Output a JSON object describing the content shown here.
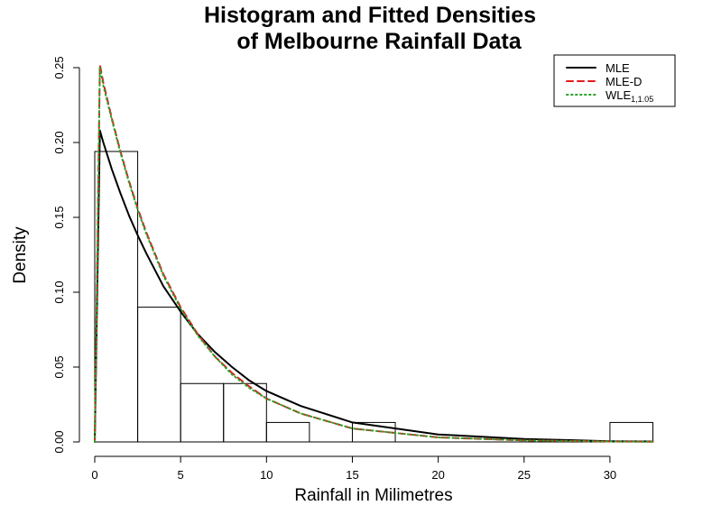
{
  "chart_data": {
    "type": "histogram",
    "title": [
      "Histogram and Fitted Densities",
      "of Melbourne Rainfall Data"
    ],
    "xlabel": "Rainfall in Milimetres",
    "ylabel": "Density",
    "xlim": [
      0,
      32.5
    ],
    "ylim": [
      0,
      0.25
    ],
    "x_ticks": [
      0,
      5,
      10,
      15,
      20,
      25,
      30
    ],
    "y_ticks": [
      0.0,
      0.05,
      0.1,
      0.15,
      0.2,
      0.25
    ],
    "y_tick_labels": [
      "0.00",
      "0.05",
      "0.10",
      "0.15",
      "0.20",
      "0.25"
    ],
    "grid": false,
    "legend_position": "top-right",
    "histogram": {
      "bin_edges": [
        0,
        2.5,
        5,
        7.5,
        10,
        12.5,
        15,
        17.5,
        20,
        22.5,
        25,
        27.5,
        30,
        32.5
      ],
      "densities": [
        0.194,
        0.09,
        0.039,
        0.039,
        0.013,
        0.0,
        0.013,
        0.0,
        0.0,
        0.0,
        0.0,
        0.0,
        0.013
      ]
    },
    "series": [
      {
        "name": "MLE",
        "color": "#000000",
        "line_style": "solid",
        "x": [
          0,
          0.3,
          0.5,
          1,
          1.5,
          2,
          2.5,
          3,
          4,
          5,
          6,
          7,
          8,
          9,
          10,
          12,
          15,
          20,
          25,
          30,
          32.5
        ],
        "y": [
          0,
          0.208,
          0.2,
          0.182,
          0.166,
          0.151,
          0.138,
          0.126,
          0.104,
          0.087,
          0.072,
          0.06,
          0.05,
          0.041,
          0.034,
          0.024,
          0.013,
          0.005,
          0.002,
          0.0005,
          0.0003
        ]
      },
      {
        "name": "MLE-D",
        "color": "#e41a1c",
        "line_style": "dashed",
        "x": [
          0,
          0.3,
          0.5,
          1,
          1.5,
          2,
          2.5,
          3,
          4,
          5,
          6,
          7,
          8,
          9,
          10,
          12,
          15,
          20,
          25,
          30,
          32.5
        ],
        "y": [
          0,
          0.252,
          0.24,
          0.216,
          0.194,
          0.174,
          0.156,
          0.14,
          0.112,
          0.09,
          0.072,
          0.057,
          0.046,
          0.037,
          0.029,
          0.019,
          0.009,
          0.003,
          0.001,
          0.0003,
          0.0001
        ]
      },
      {
        "name": "WLE",
        "name_subscript": "1,1.05",
        "color": "#2ca02c",
        "line_style": "dotted",
        "x": [
          0,
          0.3,
          0.5,
          1,
          1.5,
          2,
          2.5,
          3,
          4,
          5,
          6,
          7,
          8,
          9,
          10,
          12,
          15,
          20,
          25,
          30,
          32.5
        ],
        "y": [
          0,
          0.25,
          0.238,
          0.215,
          0.193,
          0.173,
          0.155,
          0.139,
          0.111,
          0.089,
          0.071,
          0.057,
          0.045,
          0.036,
          0.029,
          0.019,
          0.009,
          0.003,
          0.001,
          0.0003,
          0.0001
        ]
      }
    ]
  }
}
